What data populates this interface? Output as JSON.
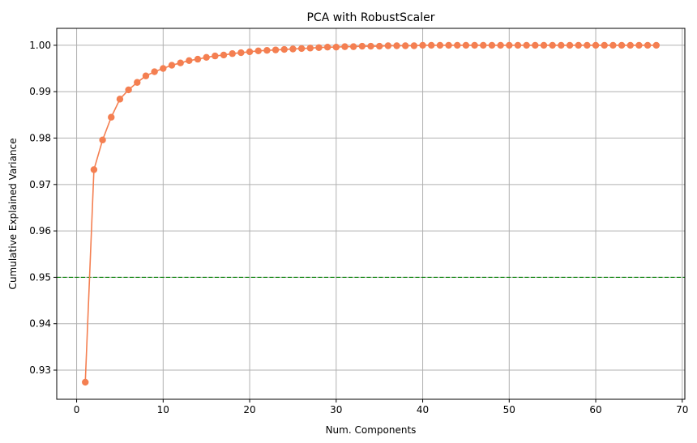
{
  "chart_data": {
    "type": "line",
    "title": "PCA with RobustScaler",
    "xlabel": "Num. Components",
    "ylabel": "Cumulative Explained Variance",
    "xlim": [
      -2.3,
      70.3
    ],
    "ylim": [
      0.92372,
      1.00365
    ],
    "xticks": [
      0,
      10,
      20,
      30,
      40,
      50,
      60,
      70
    ],
    "yticks": [
      0.93,
      0.94,
      0.95,
      0.96,
      0.97,
      0.98,
      0.99,
      1.0
    ],
    "ytick_labels": [
      "0.93",
      "0.94",
      "0.95",
      "0.96",
      "0.97",
      "0.98",
      "0.99",
      "1.00"
    ],
    "grid": true,
    "legend": "none",
    "colors": {
      "series": "#f47f51",
      "threshold": "#008000",
      "grid": "#b0b0b0"
    },
    "threshold": {
      "value": 0.95,
      "style": "dashed"
    },
    "series": [
      {
        "x": [
          1,
          2,
          3,
          4,
          5,
          6,
          7,
          8,
          9,
          10,
          11,
          12,
          13,
          14,
          15,
          16,
          17,
          18,
          19,
          20,
          21,
          22,
          23,
          24,
          25,
          26,
          27,
          28,
          29,
          30,
          31,
          32,
          33,
          34,
          35,
          36,
          37,
          38,
          39,
          40,
          41,
          42,
          43,
          44,
          45,
          46,
          47,
          48,
          49,
          50,
          51,
          52,
          53,
          54,
          55,
          56,
          57,
          58,
          59,
          60,
          61,
          62,
          63,
          64,
          65,
          66,
          67
        ],
        "values": [
          0.9274,
          0.9732,
          0.9796,
          0.9845,
          0.9884,
          0.9904,
          0.992,
          0.9934,
          0.9943,
          0.995,
          0.9957,
          0.9962,
          0.9967,
          0.997,
          0.9974,
          0.9977,
          0.9979,
          0.9982,
          0.9984,
          0.9986,
          0.9988,
          0.9989,
          0.999,
          0.9991,
          0.9992,
          0.9993,
          0.9994,
          0.9995,
          0.9996,
          0.9996,
          0.9997,
          0.9997,
          0.9998,
          0.9998,
          0.9998,
          0.9999,
          0.9999,
          0.9999,
          0.9999,
          1.0,
          1.0,
          1.0,
          1.0,
          1.0,
          1.0,
          1.0,
          1.0,
          1.0,
          1.0,
          1.0,
          1.0,
          1.0,
          1.0,
          1.0,
          1.0,
          1.0,
          1.0,
          1.0,
          1.0,
          1.0,
          1.0,
          1.0,
          1.0,
          1.0,
          1.0,
          1.0,
          1.0
        ]
      }
    ]
  }
}
